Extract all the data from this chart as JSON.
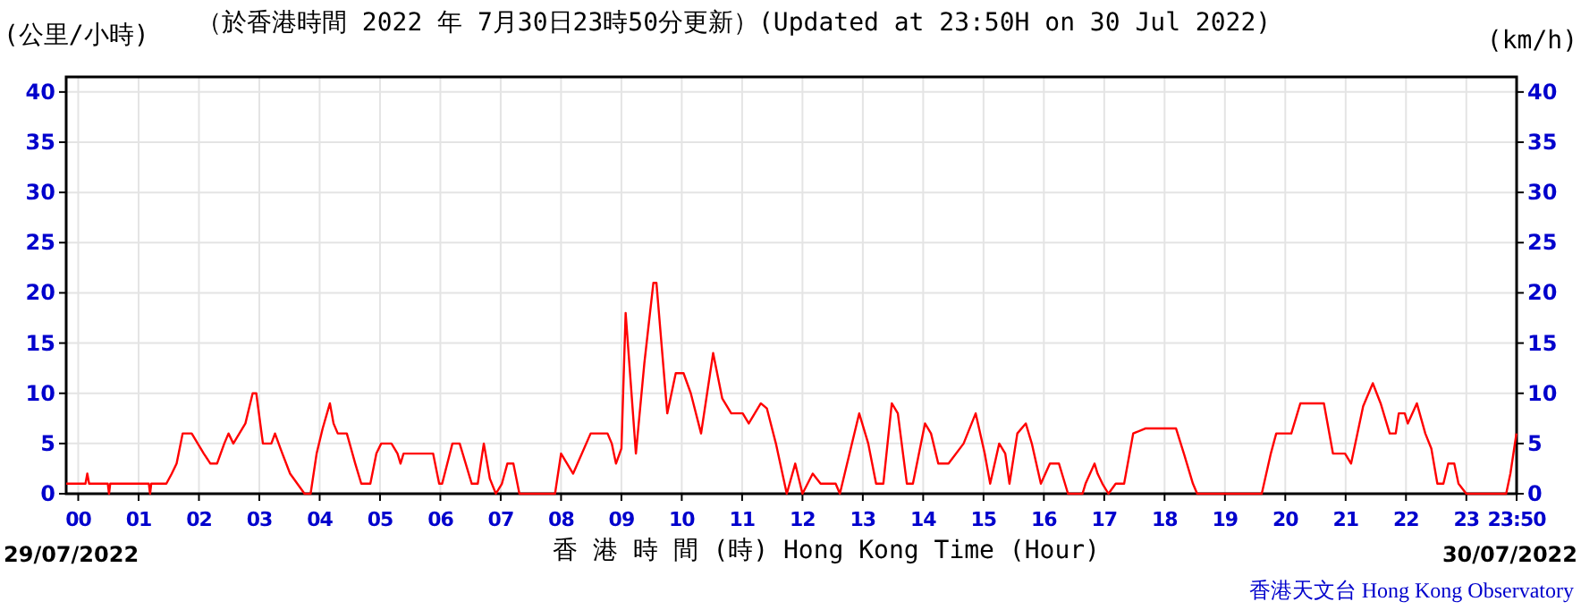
{
  "chart_data": {
    "type": "line",
    "title": "（於香港時間 2022 年 7月30日23時50分更新）(Updated at 23:50H on 30 Jul 2022)",
    "ylabel": "(公里/小時)",
    "y2label": "(km/h)",
    "xlabel": "香 港 時 間 (時)  Hong Kong Time (Hour)",
    "annotations": [
      "29/07/2022",
      "30/07/2022",
      "香港天文台 Hong Kong Observatory"
    ],
    "xlim": [
      -0.2,
      23.833
    ],
    "xticks": [
      {
        "value": 0,
        "label": "00"
      },
      {
        "value": 1,
        "label": "01"
      },
      {
        "value": 2,
        "label": "02"
      },
      {
        "value": 3,
        "label": "03"
      },
      {
        "value": 4,
        "label": "04"
      },
      {
        "value": 5,
        "label": "05"
      },
      {
        "value": 6,
        "label": "06"
      },
      {
        "value": 7,
        "label": "07"
      },
      {
        "value": 8,
        "label": "08"
      },
      {
        "value": 9,
        "label": "09"
      },
      {
        "value": 10,
        "label": "10"
      },
      {
        "value": 11,
        "label": "11"
      },
      {
        "value": 12,
        "label": "12"
      },
      {
        "value": 13,
        "label": "13"
      },
      {
        "value": 14,
        "label": "14"
      },
      {
        "value": 15,
        "label": "15"
      },
      {
        "value": 16,
        "label": "16"
      },
      {
        "value": 17,
        "label": "17"
      },
      {
        "value": 18,
        "label": "18"
      },
      {
        "value": 19,
        "label": "19"
      },
      {
        "value": 20,
        "label": "20"
      },
      {
        "value": 21,
        "label": "21"
      },
      {
        "value": 22,
        "label": "22"
      },
      {
        "value": 23,
        "label": "23"
      },
      {
        "value": 23.833,
        "label": "23:50"
      }
    ],
    "ylim": [
      0,
      41.5
    ],
    "yticks": [
      0,
      5,
      10,
      15,
      20,
      25,
      30,
      35,
      40
    ],
    "y2lim": [
      0,
      41.5
    ],
    "y2ticks": [
      0,
      5,
      10,
      15,
      20,
      25,
      30,
      35,
      40
    ],
    "grid": true,
    "marker": "none",
    "line_style": "solid",
    "series": [
      {
        "color": "#ff0000",
        "x": [
          -0.2,
          0.12,
          0.15,
          0.18,
          0.49,
          0.51,
          0.53,
          1.17,
          1.19,
          1.21,
          1.46,
          1.55,
          1.63,
          1.73,
          1.88,
          2.08,
          2.19,
          2.3,
          2.42,
          2.49,
          2.57,
          2.77,
          2.89,
          2.95,
          3.06,
          3.2,
          3.26,
          3.35,
          3.51,
          3.75,
          3.85,
          3.95,
          4.05,
          4.17,
          4.23,
          4.3,
          4.45,
          4.59,
          4.69,
          4.84,
          4.94,
          5.02,
          5.19,
          5.29,
          5.34,
          5.39,
          5.88,
          5.98,
          6.03,
          6.2,
          6.32,
          6.52,
          6.62,
          6.72,
          6.82,
          6.92,
          7.02,
          7.11,
          7.21,
          7.31,
          7.9,
          8.0,
          8.2,
          8.49,
          8.77,
          8.84,
          8.91,
          9.0,
          9.07,
          9.24,
          9.38,
          9.53,
          9.58,
          9.76,
          9.9,
          10.03,
          10.15,
          10.32,
          10.52,
          10.67,
          10.82,
          11.01,
          11.11,
          11.31,
          11.41,
          11.56,
          11.74,
          11.88,
          12.0,
          12.17,
          12.3,
          12.45,
          12.55,
          12.62,
          12.74,
          12.94,
          13.09,
          13.22,
          13.34,
          13.48,
          13.58,
          13.73,
          13.83,
          14.03,
          14.13,
          14.25,
          14.42,
          14.67,
          14.87,
          15.02,
          15.11,
          15.26,
          15.36,
          15.43,
          15.56,
          15.7,
          15.8,
          15.95,
          16.1,
          16.25,
          16.35,
          16.4,
          16.64,
          16.69,
          16.84,
          16.89,
          16.97,
          17.07,
          17.19,
          17.33,
          17.48,
          17.68,
          18.19,
          18.32,
          18.47,
          18.54,
          19.61,
          19.76,
          19.85,
          20.1,
          20.25,
          20.64,
          20.79,
          20.99,
          21.09,
          21.29,
          21.45,
          21.58,
          21.73,
          21.83,
          21.88,
          21.98,
          22.03,
          22.18,
          22.32,
          22.42,
          22.52,
          22.62,
          22.7,
          22.8,
          22.87,
          23.0,
          23.66,
          23.73,
          23.83
        ],
        "values": [
          1,
          1,
          2,
          1,
          1,
          0,
          1,
          1,
          0,
          1,
          1,
          2,
          3,
          6,
          6,
          4,
          3,
          3,
          5,
          6,
          5,
          7,
          10,
          10,
          5,
          5,
          6,
          4.5,
          2,
          0,
          0,
          4,
          6.5,
          9,
          7,
          6,
          6,
          3,
          1,
          1,
          4,
          5,
          5,
          4,
          3,
          4,
          4,
          1,
          1,
          5,
          5,
          1,
          1,
          5,
          1.5,
          0,
          1,
          3,
          3,
          0,
          0,
          4,
          2,
          6,
          6,
          5,
          3,
          4.5,
          18,
          4,
          13,
          21,
          21,
          8,
          12,
          12,
          10,
          6,
          14,
          9.5,
          8,
          8,
          7,
          9,
          8.5,
          5,
          0,
          3,
          0,
          2,
          1,
          1,
          1,
          0,
          3,
          8,
          5,
          1,
          1,
          9,
          8,
          1,
          1,
          7,
          6,
          3,
          3,
          5,
          8,
          4,
          1,
          5,
          4,
          1,
          6,
          7,
          5,
          1,
          3,
          3,
          1,
          0,
          0,
          1,
          3,
          2,
          1,
          0,
          1,
          1,
          6,
          6.5,
          6.5,
          4,
          1,
          0,
          0,
          4,
          6,
          6,
          9,
          9,
          4,
          4,
          3,
          8.7,
          11,
          9,
          6,
          6,
          8,
          8,
          7,
          9,
          6,
          4.5,
          1,
          1,
          3,
          3,
          1,
          0,
          0,
          2,
          6
        ]
      }
    ]
  }
}
